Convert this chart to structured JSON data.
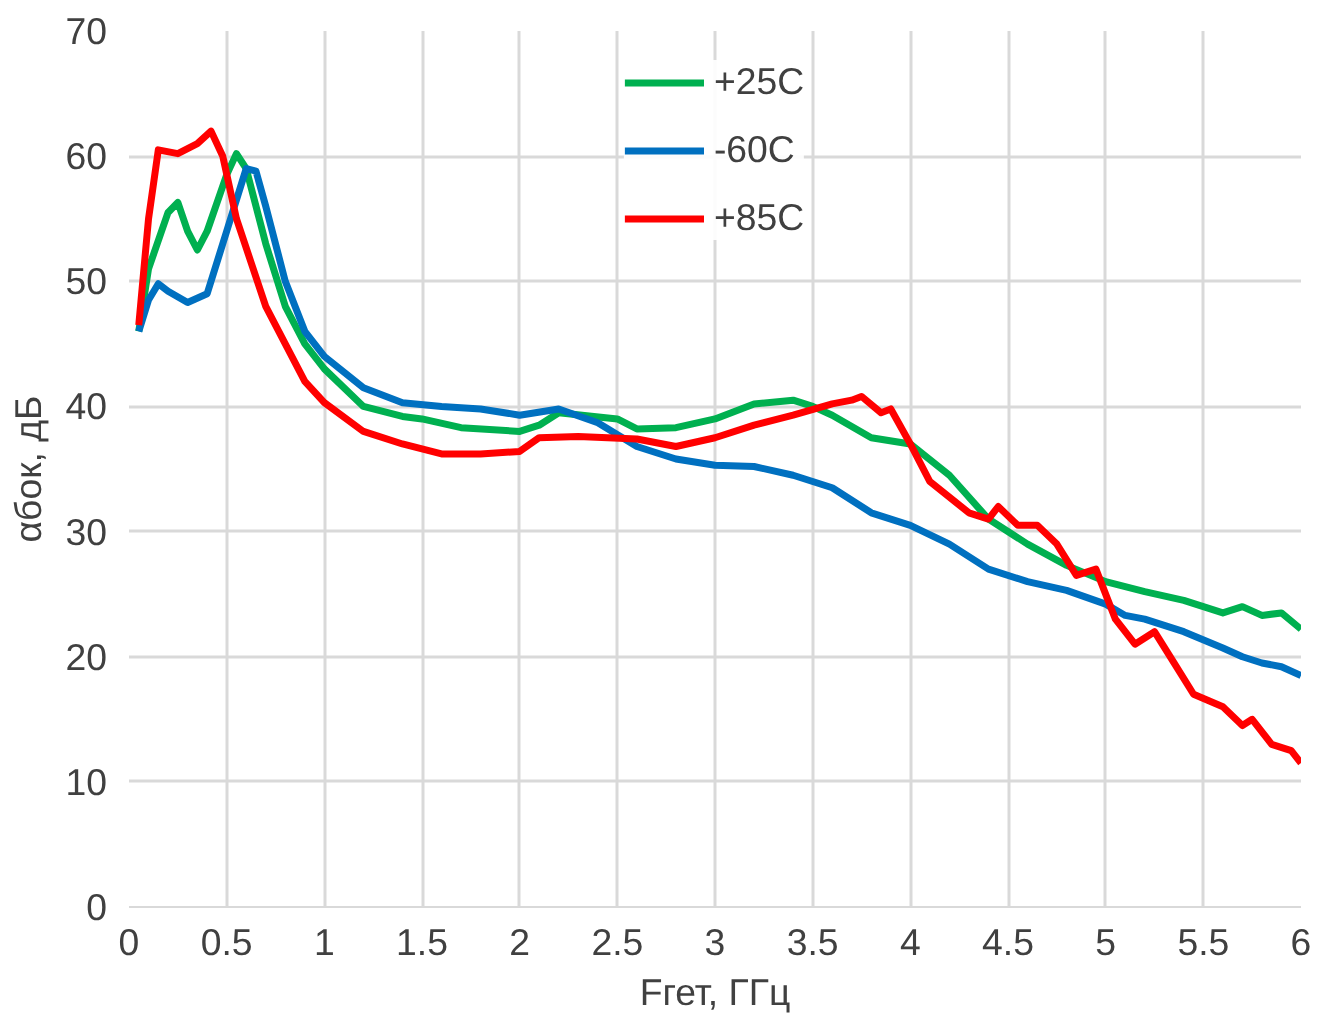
{
  "chart_data": {
    "type": "line",
    "xlabel": "Fгет, ГГц",
    "ylabel": "αбок, дБ",
    "xlim": [
      0,
      6
    ],
    "ylim": [
      0,
      70
    ],
    "xticks": [
      0,
      0.5,
      1,
      1.5,
      2,
      2.5,
      3,
      3.5,
      4,
      4.5,
      5,
      5.5,
      6
    ],
    "yticks": [
      0,
      10,
      20,
      30,
      40,
      50,
      60,
      70
    ],
    "grid": true,
    "legend": "top",
    "line_style": "solid",
    "marker": "none",
    "series": [
      {
        "name": "+25C",
        "color": "#00b050",
        "x": [
          0.05,
          0.1,
          0.2,
          0.25,
          0.3,
          0.35,
          0.4,
          0.5,
          0.55,
          0.6,
          0.7,
          0.8,
          0.9,
          1.0,
          1.2,
          1.4,
          1.5,
          1.7,
          2.0,
          2.1,
          2.2,
          2.5,
          2.6,
          2.8,
          3.0,
          3.2,
          3.4,
          3.5,
          3.6,
          3.8,
          4.0,
          4.2,
          4.4,
          4.6,
          4.8,
          5.0,
          5.2,
          5.4,
          5.6,
          5.7,
          5.8,
          5.9,
          6.0
        ],
        "values": [
          46,
          51,
          55.5,
          56.3,
          54,
          52.5,
          54,
          58.5,
          60.2,
          59,
          53,
          48,
          45,
          43,
          40,
          39.2,
          39,
          38.3,
          38,
          38.5,
          39.5,
          39,
          38.2,
          38.3,
          39,
          40.2,
          40.5,
          40,
          39.3,
          37.5,
          37,
          34.5,
          31,
          29,
          27.3,
          26,
          25.2,
          24.5,
          23.5,
          24,
          23.3,
          23.5,
          22.2
        ]
      },
      {
        "name": "-60C",
        "color": "#0070c0",
        "x": [
          0.05,
          0.1,
          0.15,
          0.2,
          0.3,
          0.4,
          0.5,
          0.6,
          0.65,
          0.7,
          0.8,
          0.9,
          1.0,
          1.2,
          1.4,
          1.6,
          1.8,
          2.0,
          2.2,
          2.4,
          2.6,
          2.8,
          3.0,
          3.2,
          3.4,
          3.6,
          3.8,
          4.0,
          4.2,
          4.4,
          4.6,
          4.8,
          5.0,
          5.1,
          5.2,
          5.4,
          5.6,
          5.7,
          5.8,
          5.9,
          6.0
        ],
        "values": [
          46,
          48.5,
          49.8,
          49.2,
          48.3,
          49,
          54,
          59,
          58.8,
          56,
          50,
          46,
          44,
          41.5,
          40.3,
          40,
          39.8,
          39.3,
          39.8,
          38.7,
          36.8,
          35.8,
          35.3,
          35.2,
          34.5,
          33.5,
          31.5,
          30.5,
          29,
          27,
          26,
          25.3,
          24.2,
          23.3,
          23,
          22,
          20.7,
          20,
          19.5,
          19.2,
          18.5
        ]
      },
      {
        "name": "+85C",
        "color": "#ff0000",
        "x": [
          0.05,
          0.1,
          0.15,
          0.25,
          0.35,
          0.42,
          0.48,
          0.55,
          0.7,
          0.8,
          0.9,
          1.0,
          1.2,
          1.4,
          1.6,
          1.8,
          2.0,
          2.1,
          2.3,
          2.6,
          2.8,
          3.0,
          3.2,
          3.4,
          3.6,
          3.7,
          3.75,
          3.85,
          3.9,
          4.0,
          4.1,
          4.3,
          4.4,
          4.45,
          4.55,
          4.65,
          4.75,
          4.85,
          4.95,
          5.05,
          5.15,
          5.25,
          5.35,
          5.45,
          5.6,
          5.7,
          5.75,
          5.85,
          5.95,
          6.0
        ],
        "values": [
          46.5,
          55,
          60.5,
          60.2,
          61,
          62,
          60,
          55,
          48,
          45,
          42,
          40.3,
          38,
          37,
          36.2,
          36.2,
          36.4,
          37.5,
          37.6,
          37.4,
          36.8,
          37.5,
          38.5,
          39.3,
          40.2,
          40.5,
          40.8,
          39.5,
          39.8,
          37,
          34,
          31.5,
          31,
          32,
          30.5,
          30.5,
          29,
          26.5,
          27,
          23,
          21,
          22,
          19.5,
          17,
          16,
          14.5,
          15,
          13,
          12.5,
          11.5
        ]
      }
    ]
  }
}
